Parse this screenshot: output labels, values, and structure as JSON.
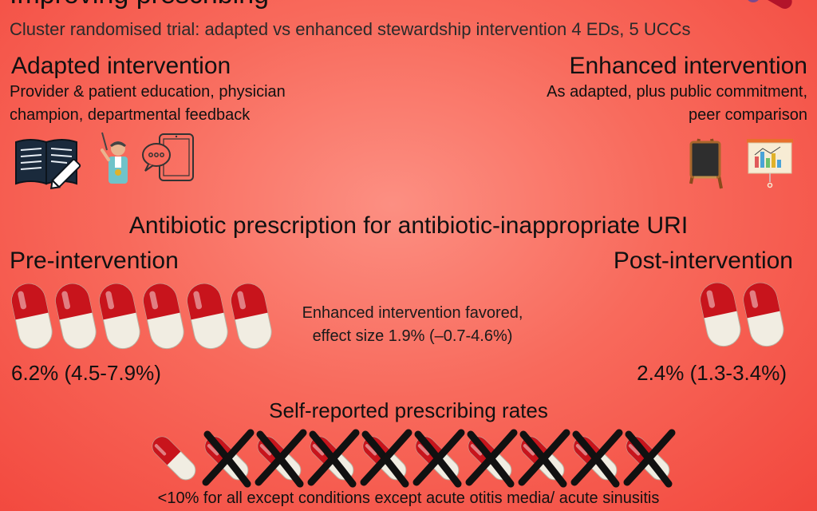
{
  "header": {
    "title_cut": "Improving prescribing",
    "subtitle": "Cluster randomised trial: adapted vs enhanced stewardship intervention 4 EDs, 5 UCCs"
  },
  "adapted": {
    "heading": "Adapted intervention",
    "description": "Provider & patient education, physician champion, departmental feedback",
    "icons": [
      "book-pencil-icon",
      "physician-champion-icon",
      "tablet-chat-icon"
    ]
  },
  "enhanced": {
    "heading": "Enhanced intervention",
    "description": "As adapted, plus public commitment, peer comparison",
    "icons": [
      "easel-board-icon",
      "chart-presentation-icon"
    ]
  },
  "prescription": {
    "section_title": "Antibiotic prescription for antibiotic-inappropriate URI",
    "pre": {
      "label": "Pre-intervention",
      "rate": "6.2% (4.5-7.9%)",
      "pill_count": 6
    },
    "post": {
      "label": "Post-intervention",
      "rate": "2.4% (1.3-3.4%)",
      "pill_count": 2
    },
    "effect_line1": "Enhanced intervention favored,",
    "effect_line2": "effect size 1.9% (–0.7-4.6%)"
  },
  "self_reported": {
    "title": "Self-reported prescribing rates",
    "pills_total": 10,
    "pills_crossed": 9,
    "footnote": "<10% for all except conditions except acute otitis media/ acute sinusitis"
  },
  "colors": {
    "pill_red": "#c8141c",
    "pill_white": "#f1ede2",
    "cross": "#111111"
  }
}
